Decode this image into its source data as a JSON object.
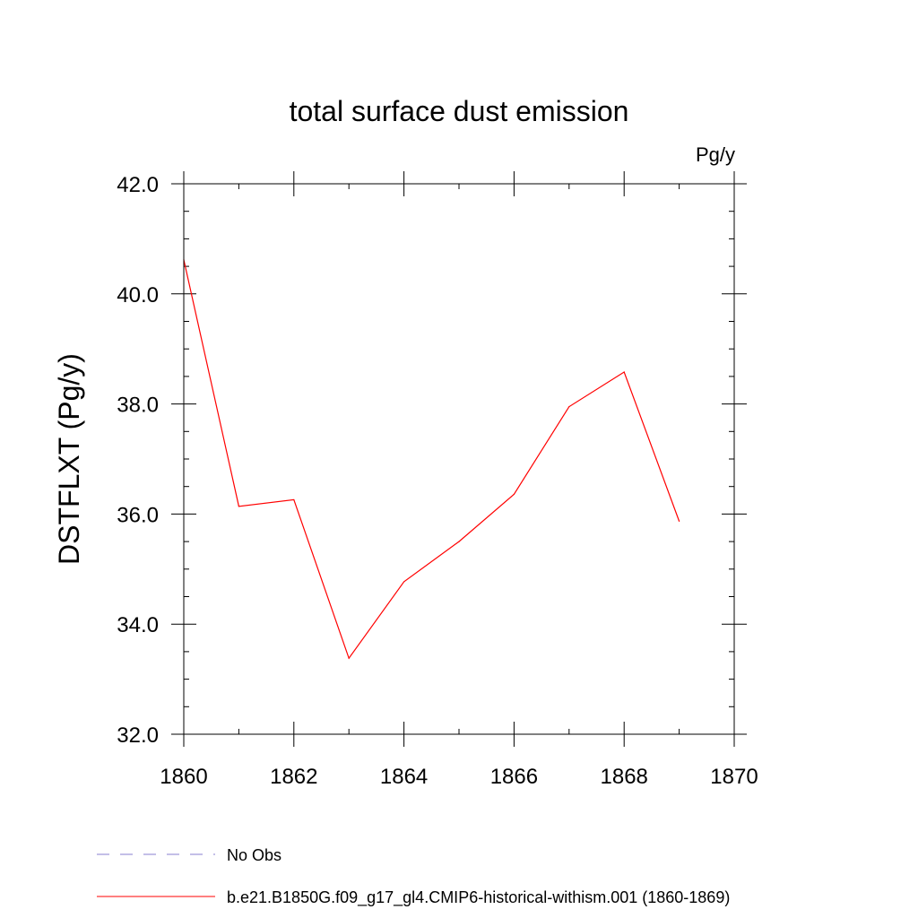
{
  "chart_data": {
    "type": "line",
    "title": "total surface dust emission",
    "units_label": "Pg/y",
    "ylabel": "DSTFLXT  (Pg/y)",
    "xlabel": "",
    "xlim": [
      1860,
      1870
    ],
    "ylim": [
      32.0,
      42.0
    ],
    "x_ticks": [
      1860,
      1862,
      1864,
      1866,
      1868,
      1870
    ],
    "x_tick_labels": [
      "1860",
      "1862",
      "1864",
      "1866",
      "1868",
      "1870"
    ],
    "y_ticks": [
      32.0,
      34.0,
      36.0,
      38.0,
      40.0,
      42.0
    ],
    "y_tick_labels": [
      "32.0",
      "34.0",
      "36.0",
      "38.0",
      "40.0",
      "42.0"
    ],
    "x_minor_step": 1,
    "y_minor_step": 0.5,
    "grid": false,
    "legend_position": "bottom-left",
    "legend": [
      {
        "label": "No Obs",
        "color": "#8a7fd0",
        "dash": true
      },
      {
        "label": "b.e21.B1850G.f09_g17_gl4.CMIP6-historical-withism.001 (1860-1869)",
        "color": "#ff0000",
        "dash": false
      }
    ],
    "series": [
      {
        "name": "b.e21.B1850G.f09_g17_gl4.CMIP6-historical-withism.001 (1860-1869)",
        "color": "#ff0000",
        "x": [
          1860,
          1861,
          1862,
          1863,
          1864,
          1865,
          1866,
          1867,
          1868,
          1869
        ],
        "y": [
          40.62,
          36.14,
          36.26,
          33.38,
          34.77,
          35.5,
          36.36,
          37.95,
          38.58,
          35.87
        ]
      }
    ]
  }
}
